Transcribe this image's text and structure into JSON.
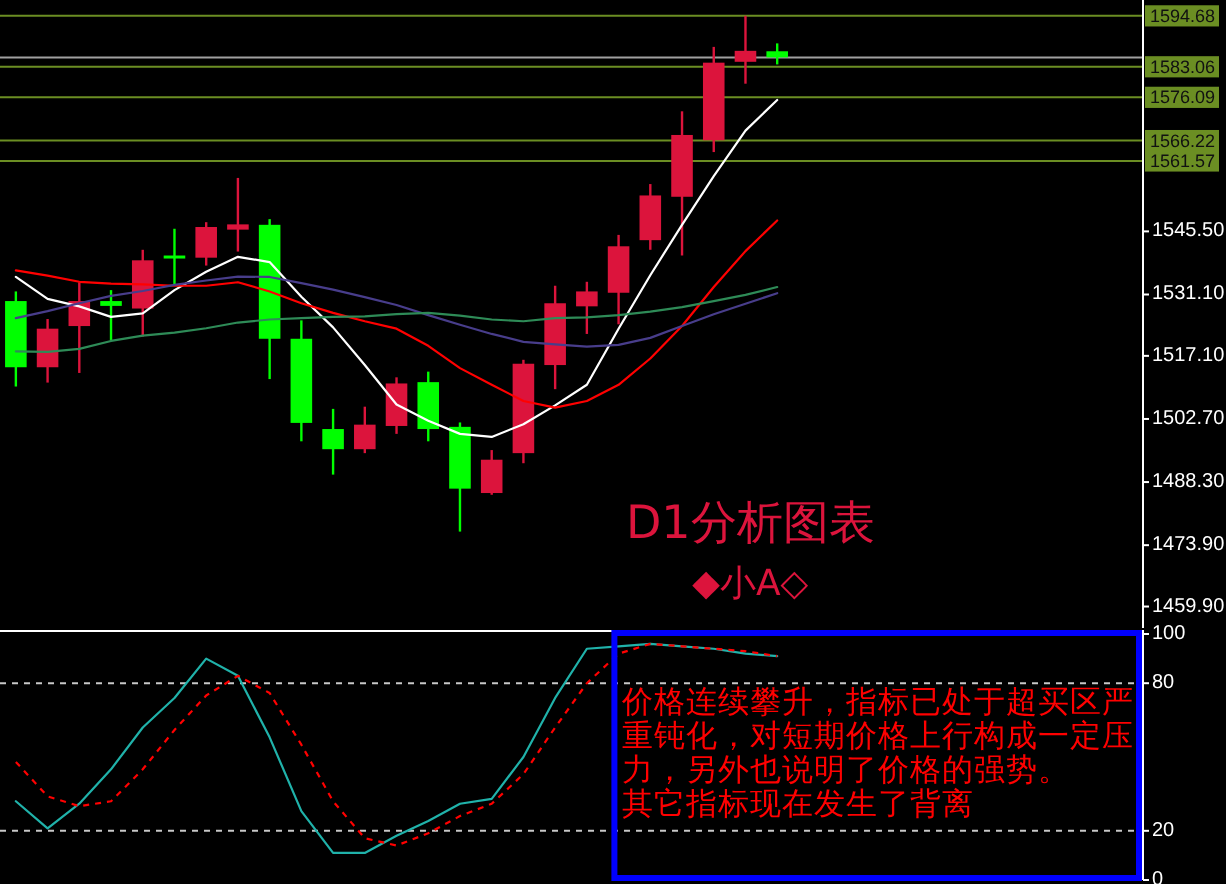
{
  "chart_data": [
    {
      "type": "candlestick",
      "title": "D1分析图表",
      "annotations": [
        "◆小A◇"
      ],
      "categories": [
        null,
        null,
        null,
        null,
        null,
        null,
        null,
        null,
        null,
        null,
        null,
        null,
        null,
        null,
        null,
        null,
        null,
        null,
        null,
        null,
        null,
        null,
        null,
        null,
        null,
        null,
        null,
        null,
        null,
        null,
        null,
        null,
        null,
        null,
        null,
        null
      ],
      "ohlc": [
        [
          1529.6,
          1531.8,
          1510.1,
          1514.5
        ],
        [
          1514.5,
          1525.5,
          1511.0,
          1523.3
        ],
        [
          1523.9,
          1533.9,
          1513.2,
          1529.6
        ],
        [
          1529.6,
          1532.1,
          1520.6,
          1528.5
        ],
        [
          1527.9,
          1541.3,
          1521.5,
          1538.9
        ],
        [
          1539.8,
          1546.1,
          1533.3,
          1539.5
        ],
        [
          1539.5,
          1547.6,
          1537.7,
          1546.5
        ],
        [
          1545.9,
          1557.7,
          1540.9,
          1547.1
        ],
        [
          1547.0,
          1548.3,
          1511.8,
          1521.0
        ],
        [
          1521.0,
          1525.2,
          1497.6,
          1501.8
        ],
        [
          1500.4,
          1505.0,
          1490.0,
          1495.8
        ],
        [
          1495.8,
          1505.5,
          1494.9,
          1501.4
        ],
        [
          1501.1,
          1512.2,
          1499.3,
          1510.8
        ],
        [
          1511.1,
          1513.5,
          1497.6,
          1500.4
        ],
        [
          1500.9,
          1501.9,
          1477.0,
          1486.8
        ],
        [
          1485.8,
          1495.6,
          1485.4,
          1493.4
        ],
        [
          1494.9,
          1516.2,
          1492.6,
          1515.3
        ],
        [
          1515.0,
          1533.1,
          1509.5,
          1529.1
        ],
        [
          1528.4,
          1534.0,
          1522.1,
          1531.8
        ],
        [
          1531.5,
          1544.7,
          1524.3,
          1542.1
        ],
        [
          1543.5,
          1556.3,
          1541.3,
          1553.7
        ],
        [
          1553.4,
          1572.9,
          1540.0,
          1567.5
        ],
        [
          1566.3,
          1587.6,
          1563.6,
          1584.0
        ],
        [
          1584.2,
          1594.7,
          1579.2,
          1586.7
        ],
        [
          1586.6,
          1588.4,
          1583.6,
          1585.2
        ],
        null,
        null,
        null,
        null,
        null,
        null,
        null,
        null,
        null,
        null,
        null
      ],
      "colors": [
        "#00ff00",
        "#dc143c",
        "#dc143c",
        "#00ff00",
        "#dc143c",
        "#00ff00",
        "#dc143c",
        "#dc143c",
        "#00ff00",
        "#00ff00",
        "#00ff00",
        "#dc143c",
        "#dc143c",
        "#00ff00",
        "#00ff00",
        "#dc143c",
        "#dc143c",
        "#dc143c",
        "#dc143c",
        "#dc143c",
        "#dc143c",
        "#dc143c",
        "#dc143c",
        "#dc143c",
        "#00ff00",
        null,
        null,
        null,
        null,
        null,
        null,
        null,
        null,
        null,
        null,
        null
      ],
      "series": [
        {
          "type": "line",
          "color": "#ffffff",
          "values": [
            1535.1,
            1530.1,
            1528.4,
            1526.0,
            1526.8,
            1532.1,
            1536.3,
            1539.7,
            1538.5,
            1530.6,
            1523.6,
            1515.0,
            1506.0,
            1502.3,
            1499.3,
            1498.6,
            1501.5,
            1505.8,
            1510.5,
            1523.3,
            1535.5,
            1547.0,
            1558.1,
            1568.5,
            1575.5,
            null,
            null,
            null,
            null,
            null,
            null,
            null,
            null,
            null,
            null,
            null
          ]
        },
        {
          "type": "line",
          "color": "#ff0000",
          "values": [
            1536.6,
            1535.4,
            1534.0,
            1533.6,
            1533.4,
            1533.1,
            1533.1,
            1533.9,
            1531.8,
            1529.1,
            1526.9,
            1525.0,
            1523.3,
            1519.4,
            1514.3,
            1510.5,
            1506.8,
            1505.3,
            1506.8,
            1510.5,
            1516.5,
            1523.9,
            1532.8,
            1541.0,
            1548.0,
            null,
            null,
            null,
            null,
            null,
            null,
            null,
            null,
            null,
            null,
            null
          ]
        },
        {
          "type": "line",
          "color": "#483d8b",
          "values": [
            1525.7,
            1527.3,
            1529.1,
            1530.8,
            1531.9,
            1533.3,
            1534.3,
            1535.2,
            1535.1,
            1533.7,
            1532.2,
            1530.5,
            1528.7,
            1526.4,
            1524.2,
            1522.1,
            1520.3,
            1519.7,
            1519.2,
            1519.6,
            1521.2,
            1523.9,
            1526.6,
            1529.0,
            1531.4,
            null,
            null,
            null,
            null,
            null,
            null,
            null,
            null,
            null,
            null,
            null
          ]
        },
        {
          "type": "line",
          "color": "#2e8b57",
          "values": [
            1518.1,
            1518.0,
            1518.7,
            1520.5,
            1521.7,
            1522.4,
            1523.4,
            1524.7,
            1525.4,
            1525.7,
            1526.0,
            1526.1,
            1526.6,
            1526.9,
            1526.3,
            1525.4,
            1525.0,
            1525.7,
            1525.9,
            1526.4,
            1527.2,
            1528.2,
            1529.6,
            1531.0,
            1532.8,
            null,
            null,
            null,
            null,
            null,
            null,
            null,
            null,
            null,
            null,
            null
          ]
        }
      ],
      "ylim": [
        1455,
        1598.3
      ],
      "yticks": [
        {
          "value": 1459.9,
          "label": "1459.90"
        },
        {
          "value": 1473.9,
          "label": "1473.90"
        },
        {
          "value": 1488.3,
          "label": "1488.30"
        },
        {
          "value": 1502.7,
          "label": "1502.70"
        },
        {
          "value": 1517.1,
          "label": "1517.10"
        },
        {
          "value": 1531.1,
          "label": "1531.10"
        },
        {
          "value": 1545.5,
          "label": "1545.50"
        }
      ],
      "ref_lines": [
        {
          "axis": "y",
          "value": 1594.68,
          "label": "1594.68",
          "color": "#6b8e23"
        },
        {
          "axis": "y",
          "value": 1585.2,
          "color": "#a0a0a0"
        },
        {
          "axis": "y",
          "value": 1583.06,
          "label": "1583.06",
          "color": "#6b8e23"
        },
        {
          "axis": "y",
          "value": 1576.09,
          "label": "1576.09",
          "color": "#6b8e23"
        },
        {
          "axis": "y",
          "value": 1566.22,
          "label": "1566.22",
          "color": "#6b8e23"
        },
        {
          "axis": "y",
          "value": 1561.57,
          "label": "1561.57",
          "color": "#6b8e23"
        }
      ],
      "tick_labels": "y"
    },
    {
      "type": "line",
      "categories": [
        null,
        null,
        null,
        null,
        null,
        null,
        null,
        null,
        null,
        null,
        null,
        null,
        null,
        null,
        null,
        null,
        null,
        null,
        null,
        null,
        null,
        null,
        null,
        null,
        null,
        null,
        null,
        null,
        null,
        null,
        null,
        null,
        null,
        null,
        null,
        null
      ],
      "series": [
        {
          "color": "#20b2aa",
          "values": [
            32,
            21,
            31,
            45,
            62,
            74,
            90,
            83,
            58,
            28,
            11,
            11,
            18,
            24,
            31,
            33,
            50,
            74,
            94,
            95,
            96,
            95,
            94,
            92,
            91,
            null,
            null,
            null,
            null,
            null,
            null,
            null,
            null,
            null,
            null,
            null
          ]
        },
        {
          "color": "#ff0000",
          "line_style": "dashed",
          "values": [
            48,
            34,
            30,
            32,
            45,
            61,
            75,
            83,
            76,
            55,
            32,
            17,
            14,
            19,
            26,
            31,
            43,
            62,
            80,
            92,
            96,
            95,
            94,
            93,
            91,
            null,
            null,
            null,
            null,
            null,
            null,
            null,
            null,
            null,
            null,
            null
          ]
        }
      ],
      "ylim": [
        0,
        100
      ],
      "yticks": [
        0,
        20,
        80,
        100
      ],
      "ref_lines": [
        {
          "axis": "y",
          "value": 80,
          "color": "#c8c8c8",
          "line_style": "dashed"
        },
        {
          "axis": "y",
          "value": 20,
          "color": "#c8c8c8",
          "line_style": "dashed"
        }
      ],
      "annotations": [
        "价格连续攀升，指标已处于超买区严重钝化，对短期价格上行构成一定压力，另外也说明了价格的强势。",
        "其它指标现在发生了背离"
      ],
      "tick_labels": "y"
    }
  ]
}
